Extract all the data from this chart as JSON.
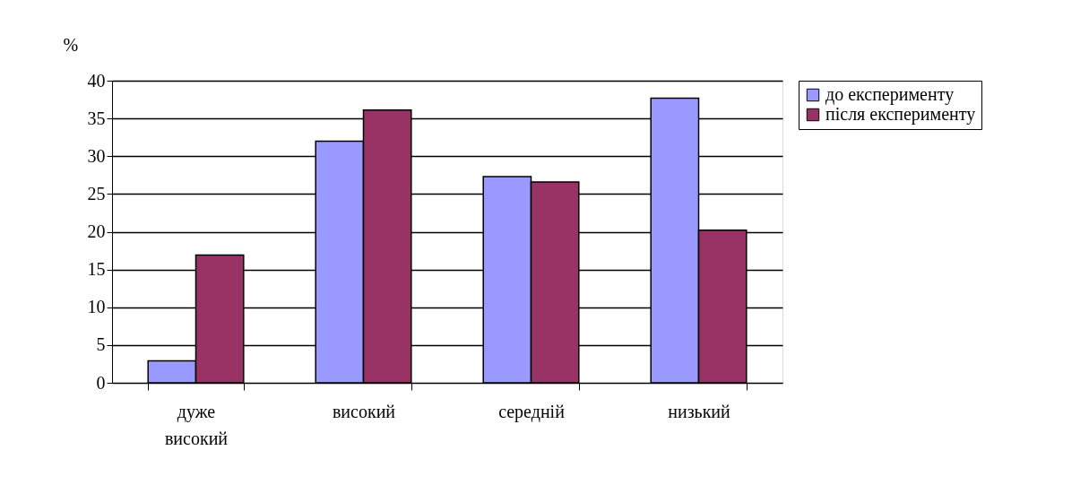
{
  "chart_data": {
    "type": "bar",
    "ylabel": "%",
    "categories": [
      "дуже високий",
      "високий",
      "середній",
      "низький"
    ],
    "series": [
      {
        "name": "до експерименту",
        "color": "#9999ff",
        "values": [
          2.9,
          32.0,
          27.3,
          37.7
        ]
      },
      {
        "name": "після експерименту",
        "color": "#993366",
        "values": [
          16.9,
          36.1,
          26.6,
          20.2
        ]
      }
    ],
    "ylim": [
      0,
      40
    ],
    "yticks": [
      0,
      5,
      10,
      15,
      20,
      25,
      30,
      35,
      40
    ],
    "grid": "y",
    "legend": "right"
  }
}
